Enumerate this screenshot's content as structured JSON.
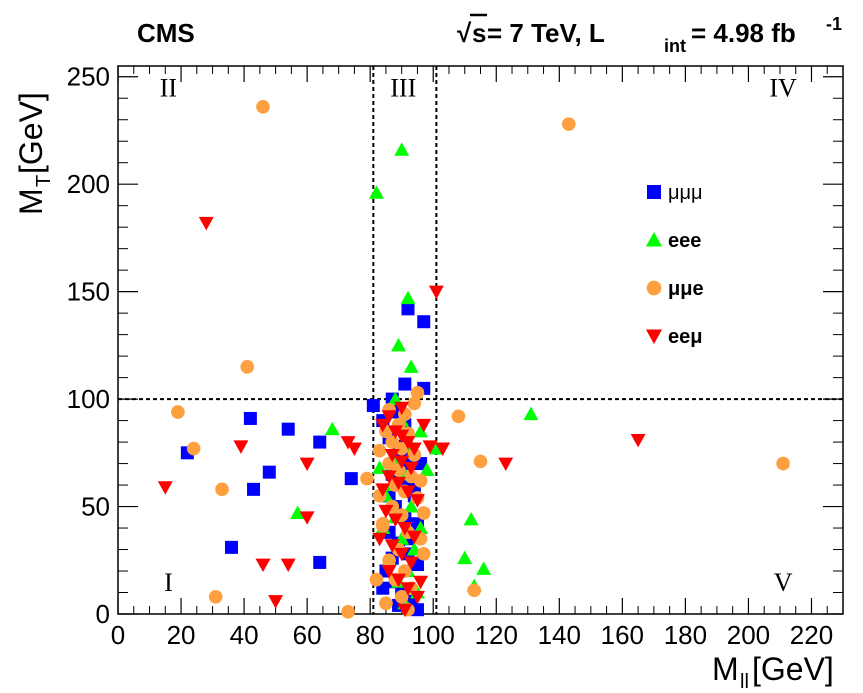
{
  "chart_data": {
    "type": "scatter",
    "experiment_label": "CMS",
    "energy_label": {
      "sqrt_symbol": "√",
      "s_text": "s",
      "energy_text": " = 7 TeV, L",
      "lumi_sub": "int",
      "lumi_text": " = 4.98 fb",
      "lumi_sup": "-1"
    },
    "xlabel": {
      "main": "M",
      "sub": "ll",
      "unit": " [GeV]"
    },
    "ylabel": {
      "main": "M",
      "sub": "T",
      "unit": " [GeV]"
    },
    "xlim": [
      0,
      230
    ],
    "ylim": [
      0,
      255
    ],
    "x_ticks": [
      0,
      20,
      40,
      60,
      80,
      100,
      120,
      140,
      160,
      180,
      200,
      220
    ],
    "y_ticks": [
      0,
      50,
      100,
      150,
      200,
      250
    ],
    "region_labels": [
      {
        "text": "I",
        "x": 16,
        "y": 15
      },
      {
        "text": "II",
        "x": 16,
        "y": 245
      },
      {
        "text": "III",
        "x": 90.5,
        "y": 245
      },
      {
        "text": "IV",
        "x": 211,
        "y": 245
      },
      {
        "text": "V",
        "x": 211,
        "y": 15
      }
    ],
    "cut_lines": {
      "x_low": 81,
      "x_high": 101,
      "y": 100
    },
    "legend_position": "upper-right",
    "series": [
      {
        "name": "μμμ",
        "name_bold": false,
        "marker": "square",
        "color": "#0000ff",
        "points": [
          [
            92,
            142
          ],
          [
            97,
            136
          ],
          [
            91,
            107
          ],
          [
            97,
            105
          ],
          [
            81,
            97
          ],
          [
            87,
            100
          ],
          [
            42,
            91
          ],
          [
            54,
            86
          ],
          [
            64,
            80
          ],
          [
            22,
            75
          ],
          [
            48,
            66
          ],
          [
            74,
            63
          ],
          [
            43,
            58
          ],
          [
            36,
            31
          ],
          [
            64,
            24
          ],
          [
            84,
            90
          ],
          [
            86,
            82
          ],
          [
            89,
            78
          ],
          [
            90,
            75
          ],
          [
            92,
            70
          ],
          [
            87,
            65
          ],
          [
            90,
            60
          ],
          [
            94,
            55
          ],
          [
            88,
            50
          ],
          [
            91,
            45
          ],
          [
            95,
            42
          ],
          [
            86,
            38
          ],
          [
            89,
            33
          ],
          [
            92,
            28
          ],
          [
            95,
            23
          ],
          [
            85,
            20
          ],
          [
            88,
            15
          ],
          [
            90,
            10
          ],
          [
            93,
            6
          ],
          [
            89,
            4
          ],
          [
            95,
            2
          ],
          [
            84,
            12
          ],
          [
            87,
            26
          ],
          [
            92,
            35
          ],
          [
            94,
            60
          ],
          [
            96,
            70
          ],
          [
            91,
            88
          ],
          [
            88,
            94
          ],
          [
            86,
            55
          ]
        ]
      },
      {
        "name": "eee",
        "name_bold": true,
        "marker": "triangle-up",
        "color": "#00ff00",
        "points": [
          [
            90,
            216
          ],
          [
            82,
            196
          ],
          [
            92,
            147
          ],
          [
            89,
            125
          ],
          [
            93,
            115
          ],
          [
            131,
            93
          ],
          [
            68,
            86
          ],
          [
            57,
            47
          ],
          [
            112,
            44
          ],
          [
            98,
            67
          ],
          [
            101,
            77
          ],
          [
            110,
            26
          ],
          [
            116,
            21
          ],
          [
            113,
            13
          ],
          [
            83,
            68
          ],
          [
            87,
            72
          ],
          [
            91,
            65
          ],
          [
            85,
            55
          ],
          [
            93,
            50
          ],
          [
            88,
            45
          ],
          [
            96,
            40
          ],
          [
            90,
            35
          ],
          [
            94,
            30
          ],
          [
            86,
            25
          ],
          [
            92,
            20
          ],
          [
            89,
            15
          ],
          [
            95,
            10
          ],
          [
            91,
            5
          ],
          [
            84,
            40
          ],
          [
            87,
            60
          ],
          [
            93,
            78
          ],
          [
            90,
            90
          ],
          [
            96,
            85
          ],
          [
            88,
            100
          ]
        ]
      },
      {
        "name": "μμe",
        "name_bold": true,
        "marker": "circle",
        "color": "#ffa040",
        "points": [
          [
            46,
            236
          ],
          [
            143,
            228
          ],
          [
            41,
            115
          ],
          [
            19,
            94
          ],
          [
            108,
            92
          ],
          [
            24,
            77
          ],
          [
            115,
            71
          ],
          [
            211,
            70
          ],
          [
            33,
            58
          ],
          [
            31,
            8
          ],
          [
            73,
            1
          ],
          [
            92,
            2
          ],
          [
            113,
            11
          ],
          [
            79,
            63
          ],
          [
            83,
            76
          ],
          [
            84,
            41
          ],
          [
            82,
            16
          ],
          [
            95,
            103
          ],
          [
            94,
            98
          ],
          [
            86,
            95
          ],
          [
            89,
            88
          ],
          [
            92,
            84
          ],
          [
            87,
            80
          ],
          [
            90,
            77
          ],
          [
            94,
            74
          ],
          [
            86,
            70
          ],
          [
            89,
            67
          ],
          [
            93,
            64
          ],
          [
            88,
            60
          ],
          [
            91,
            57
          ],
          [
            95,
            54
          ],
          [
            87,
            50
          ],
          [
            90,
            46
          ],
          [
            84,
            42
          ],
          [
            92,
            38
          ],
          [
            96,
            35
          ],
          [
            89,
            30
          ],
          [
            86,
            25
          ],
          [
            91,
            20
          ],
          [
            88,
            16
          ],
          [
            93,
            12
          ],
          [
            90,
            8
          ],
          [
            85,
            5
          ],
          [
            97,
            28
          ],
          [
            83,
            55
          ],
          [
            96,
            62
          ],
          [
            85,
            85
          ],
          [
            91,
            93
          ],
          [
            97,
            47
          ]
        ]
      },
      {
        "name": "eeμ",
        "name_bold": true,
        "marker": "triangle-down",
        "color": "#ff0000",
        "points": [
          [
            28,
            182
          ],
          [
            101,
            150
          ],
          [
            165,
            81
          ],
          [
            39,
            78
          ],
          [
            60,
            70
          ],
          [
            99,
            78
          ],
          [
            103,
            77
          ],
          [
            123,
            70
          ],
          [
            15,
            59
          ],
          [
            60,
            45
          ],
          [
            46,
            23
          ],
          [
            54,
            23
          ],
          [
            50,
            6
          ],
          [
            73,
            80
          ],
          [
            75,
            77
          ],
          [
            84,
            88
          ],
          [
            86,
            92
          ],
          [
            88,
            85
          ],
          [
            90,
            83
          ],
          [
            92,
            80
          ],
          [
            94,
            77
          ],
          [
            87,
            74
          ],
          [
            90,
            71
          ],
          [
            93,
            68
          ],
          [
            86,
            64
          ],
          [
            89,
            61
          ],
          [
            92,
            57
          ],
          [
            95,
            53
          ],
          [
            85,
            48
          ],
          [
            88,
            44
          ],
          [
            91,
            40
          ],
          [
            94,
            36
          ],
          [
            87,
            32
          ],
          [
            90,
            28
          ],
          [
            93,
            24
          ],
          [
            86,
            20
          ],
          [
            89,
            16
          ],
          [
            92,
            12
          ],
          [
            95,
            8
          ],
          [
            84,
            58
          ],
          [
            97,
            88
          ],
          [
            83,
            35
          ],
          [
            96,
            15
          ],
          [
            90,
            96
          ],
          [
            91,
            2
          ]
        ]
      }
    ]
  }
}
